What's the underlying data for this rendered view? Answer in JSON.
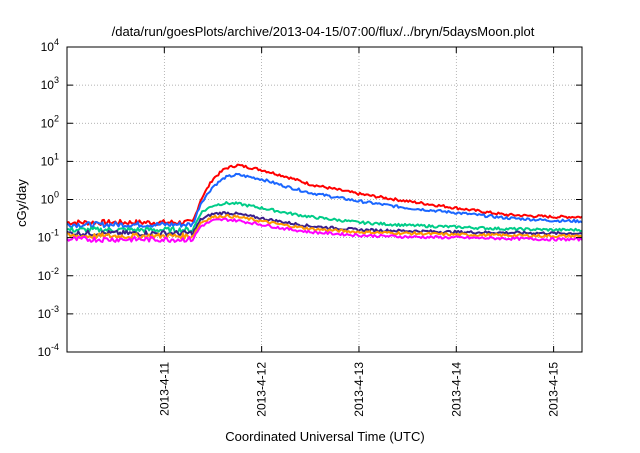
{
  "chart_data": {
    "type": "line",
    "title": "/data/run/goesPlots/archive/2013-04-15/07:00/flux/../bryn/5daysMoon.plot",
    "xlabel": "Coordinated Universal Time (UTC)",
    "ylabel": "cGy/day",
    "yscale": "log",
    "ylim": [
      0.0001,
      10000
    ],
    "xlim": [
      "2013-04-10 00:00",
      "2013-04-15 07:00"
    ],
    "grid": true,
    "xticks": [
      {
        "value": "2013-04-11 00:00",
        "label": "2013-4-11"
      },
      {
        "value": "2013-04-12 00:00",
        "label": "2013-4-12"
      },
      {
        "value": "2013-04-13 00:00",
        "label": "2013-4-13"
      },
      {
        "value": "2013-04-14 00:00",
        "label": "2013-4-14"
      },
      {
        "value": "2013-04-15 00:00",
        "label": "2013-4-15"
      }
    ],
    "yticks": [
      {
        "value": 0.0001,
        "base": "10",
        "exp": "-4"
      },
      {
        "value": 0.001,
        "base": "10",
        "exp": "-3"
      },
      {
        "value": 0.01,
        "base": "10",
        "exp": "-2"
      },
      {
        "value": 0.1,
        "base": "10",
        "exp": "-1"
      },
      {
        "value": 1,
        "base": "10",
        "exp": "0"
      },
      {
        "value": 10,
        "base": "10",
        "exp": "1"
      },
      {
        "value": 100,
        "base": "10",
        "exp": "2"
      },
      {
        "value": 1000,
        "base": "10",
        "exp": "3"
      },
      {
        "value": 10000,
        "base": "10",
        "exp": "4"
      }
    ],
    "series": [
      {
        "color": "#ff0000",
        "x": [
          "2013-04-10 00:00",
          "2013-04-10 12:00",
          "2013-04-11 00:00",
          "2013-04-11 07:00",
          "2013-04-11 09:00",
          "2013-04-11 12:00",
          "2013-04-11 15:00",
          "2013-04-11 18:00",
          "2013-04-12 00:00",
          "2013-04-12 06:00",
          "2013-04-12 12:00",
          "2013-04-13 00:00",
          "2013-04-13 12:00",
          "2013-04-14 00:00",
          "2013-04-14 12:00",
          "2013-04-15 00:00",
          "2013-04-15 07:00"
        ],
        "values": [
          0.25,
          0.25,
          0.25,
          0.25,
          1.0,
          3.5,
          6.5,
          8.0,
          6.0,
          4.0,
          2.5,
          1.4,
          0.9,
          0.6,
          0.4,
          0.35,
          0.35
        ]
      },
      {
        "color": "#1a66ff",
        "x": [
          "2013-04-10 00:00",
          "2013-04-10 12:00",
          "2013-04-11 00:00",
          "2013-04-11 07:00",
          "2013-04-11 09:00",
          "2013-04-11 12:00",
          "2013-04-11 15:00",
          "2013-04-11 18:00",
          "2013-04-12 00:00",
          "2013-04-12 06:00",
          "2013-04-12 12:00",
          "2013-04-13 00:00",
          "2013-04-13 12:00",
          "2013-04-14 00:00",
          "2013-04-14 12:00",
          "2013-04-15 00:00",
          "2013-04-15 07:00"
        ],
        "values": [
          0.22,
          0.22,
          0.22,
          0.22,
          0.8,
          2.2,
          3.8,
          4.5,
          3.4,
          2.2,
          1.5,
          0.9,
          0.6,
          0.45,
          0.33,
          0.28,
          0.27
        ]
      },
      {
        "color": "#00cc88",
        "x": [
          "2013-04-10 00:00",
          "2013-04-10 12:00",
          "2013-04-11 00:00",
          "2013-04-11 07:00",
          "2013-04-11 09:00",
          "2013-04-11 12:00",
          "2013-04-11 15:00",
          "2013-04-11 18:00",
          "2013-04-12 00:00",
          "2013-04-12 06:00",
          "2013-04-12 12:00",
          "2013-04-13 00:00",
          "2013-04-13 12:00",
          "2013-04-14 00:00",
          "2013-04-14 12:00",
          "2013-04-15 00:00",
          "2013-04-15 07:00"
        ],
        "values": [
          0.16,
          0.16,
          0.16,
          0.16,
          0.45,
          0.7,
          0.8,
          0.78,
          0.6,
          0.45,
          0.35,
          0.25,
          0.21,
          0.19,
          0.17,
          0.16,
          0.16
        ]
      },
      {
        "color": "#3b1e8c",
        "x": [
          "2013-04-10 00:00",
          "2013-04-10 12:00",
          "2013-04-11 00:00",
          "2013-04-11 07:00",
          "2013-04-11 09:00",
          "2013-04-11 12:00",
          "2013-04-11 15:00",
          "2013-04-11 18:00",
          "2013-04-12 00:00",
          "2013-04-12 06:00",
          "2013-04-12 12:00",
          "2013-04-13 00:00",
          "2013-04-13 12:00",
          "2013-04-14 00:00",
          "2013-04-14 12:00",
          "2013-04-15 00:00",
          "2013-04-15 07:00"
        ],
        "values": [
          0.13,
          0.13,
          0.13,
          0.13,
          0.3,
          0.42,
          0.45,
          0.42,
          0.32,
          0.25,
          0.2,
          0.16,
          0.15,
          0.14,
          0.135,
          0.13,
          0.13
        ]
      },
      {
        "color": "#ff9900",
        "x": [
          "2013-04-10 00:00",
          "2013-04-10 12:00",
          "2013-04-11 00:00",
          "2013-04-11 07:00",
          "2013-04-11 09:00",
          "2013-04-11 12:00",
          "2013-04-11 15:00",
          "2013-04-11 18:00",
          "2013-04-12 00:00",
          "2013-04-12 06:00",
          "2013-04-12 12:00",
          "2013-04-13 00:00",
          "2013-04-13 12:00",
          "2013-04-14 00:00",
          "2013-04-14 12:00",
          "2013-04-15 00:00",
          "2013-04-15 07:00"
        ],
        "values": [
          0.11,
          0.11,
          0.11,
          0.11,
          0.25,
          0.35,
          0.37,
          0.35,
          0.27,
          0.21,
          0.17,
          0.14,
          0.13,
          0.12,
          0.115,
          0.11,
          0.11
        ]
      },
      {
        "color": "#ff00ff",
        "x": [
          "2013-04-10 00:00",
          "2013-04-10 12:00",
          "2013-04-11 00:00",
          "2013-04-11 07:00",
          "2013-04-11 09:00",
          "2013-04-11 12:00",
          "2013-04-11 15:00",
          "2013-04-11 18:00",
          "2013-04-12 00:00",
          "2013-04-12 06:00",
          "2013-04-12 12:00",
          "2013-04-13 00:00",
          "2013-04-13 12:00",
          "2013-04-14 00:00",
          "2013-04-14 12:00",
          "2013-04-15 00:00",
          "2013-04-15 07:00"
        ],
        "values": [
          0.09,
          0.09,
          0.09,
          0.09,
          0.2,
          0.28,
          0.3,
          0.28,
          0.22,
          0.17,
          0.14,
          0.115,
          0.105,
          0.1,
          0.095,
          0.09,
          0.09
        ]
      }
    ]
  }
}
